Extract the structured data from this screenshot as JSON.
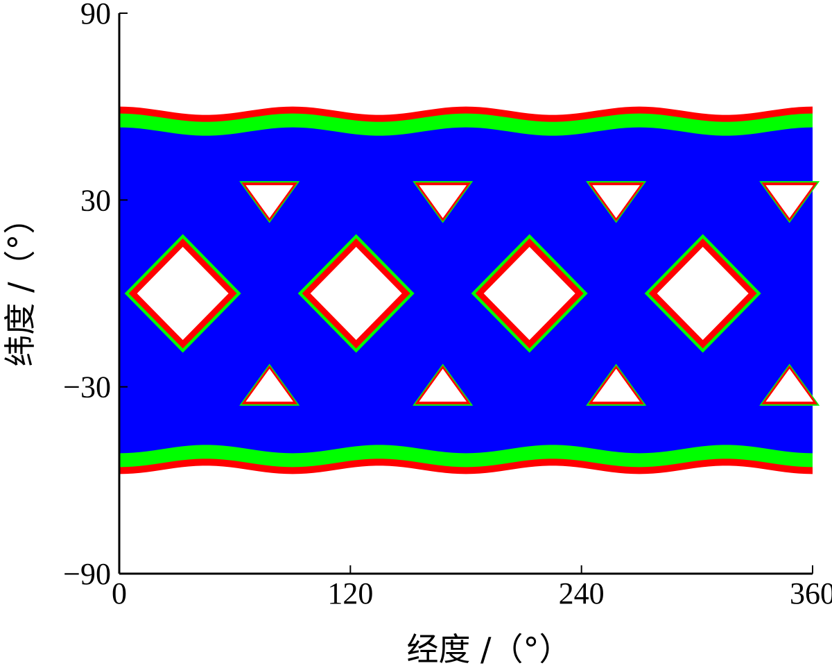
{
  "chart_data": {
    "type": "heatmap",
    "title": "",
    "xlabel": "经度 /（°）",
    "ylabel": "纬度 /（°）",
    "xlim": [
      0,
      360
    ],
    "ylim": [
      -90,
      90
    ],
    "xticks": [
      "0",
      "120",
      "240",
      "360"
    ],
    "yticks": [
      "90",
      "30",
      "−30",
      "−90"
    ],
    "grid": false,
    "legend": "none",
    "colors": {
      "covered": "#0000ff",
      "boundary_inner": "#00ff00",
      "boundary_outer": "#ff0000",
      "uncovered": "#ffffff"
    },
    "coverage_band": {
      "lat_min": -58,
      "lat_max": 60
    },
    "holes": [
      {
        "shape": "diamond",
        "lon": 33,
        "lat": 0,
        "half_width_lon": 27,
        "half_height_lat": 17
      },
      {
        "shape": "diamond",
        "lon": 123,
        "lat": 0,
        "half_width_lon": 27,
        "half_height_lat": 17
      },
      {
        "shape": "diamond",
        "lon": 213,
        "lat": 0,
        "half_width_lon": 27,
        "half_height_lat": 17
      },
      {
        "shape": "diamond",
        "lon": 303,
        "lat": 0,
        "half_width_lon": 27,
        "half_height_lat": 17
      },
      {
        "shape": "triangle-down",
        "lon": 78,
        "lat": 30,
        "half_width_lon": 14,
        "height_lat": 12
      },
      {
        "shape": "triangle-down",
        "lon": 168,
        "lat": 30,
        "half_width_lon": 14,
        "height_lat": 12
      },
      {
        "shape": "triangle-down",
        "lon": 258,
        "lat": 30,
        "half_width_lon": 14,
        "height_lat": 12
      },
      {
        "shape": "triangle-down",
        "lon": 348,
        "lat": 30,
        "half_width_lon": 14,
        "height_lat": 12
      },
      {
        "shape": "triangle-up",
        "lon": 78,
        "lat": -30,
        "half_width_lon": 14,
        "height_lat": 12
      },
      {
        "shape": "triangle-up",
        "lon": 168,
        "lat": -30,
        "half_width_lon": 14,
        "height_lat": 12
      },
      {
        "shape": "triangle-up",
        "lon": 258,
        "lat": -30,
        "half_width_lon": 14,
        "height_lat": 12
      },
      {
        "shape": "triangle-up",
        "lon": 348,
        "lat": -30,
        "half_width_lon": 14,
        "height_lat": 12
      }
    ]
  }
}
